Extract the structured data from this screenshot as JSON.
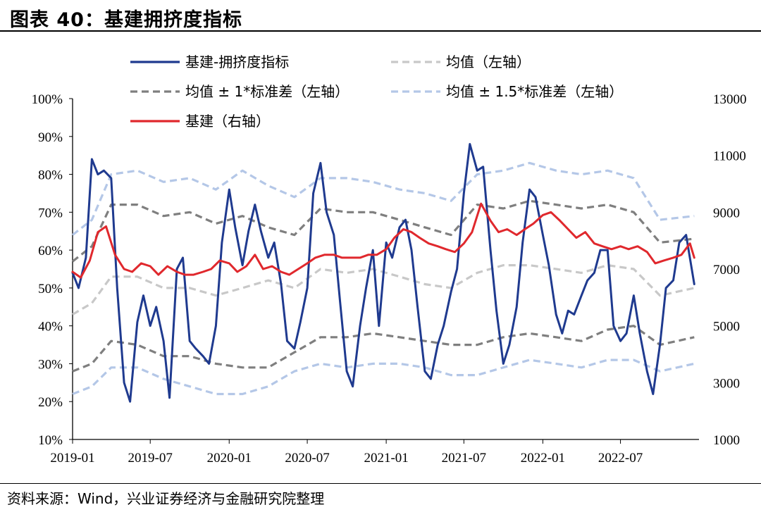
{
  "title": "图表 40：基建拥挤度指标",
  "source": "资料来源：Wind，兴业证券经济与金融研究院整理",
  "chart_data": {
    "type": "line",
    "x_tick_labels": [
      "2019-01",
      "2019-07",
      "2020-01",
      "2020-07",
      "2021-01",
      "2021-07",
      "2022-01",
      "2022-07"
    ],
    "x_range": [
      "2019-01-01",
      "2022-12-31"
    ],
    "y_left": {
      "ticks": [
        "10%",
        "20%",
        "30%",
        "40%",
        "50%",
        "60%",
        "70%",
        "80%",
        "90%",
        "100%"
      ],
      "range": [
        0.1,
        1.0
      ]
    },
    "y_right": {
      "ticks": [
        "1000",
        "3000",
        "5000",
        "7000",
        "9000",
        "11000",
        "13000"
      ],
      "range": [
        1000,
        13000
      ]
    },
    "legend": [
      {
        "label": "基建-拥挤度指标",
        "color": "#1f3a8f",
        "style": "solid"
      },
      {
        "label": "均值（左轴）",
        "color": "#c8c8c8",
        "style": "dashed"
      },
      {
        "label": "均值 ± 1*标准差（左轴）",
        "color": "#7f7f7f",
        "style": "dashed"
      },
      {
        "label": "均值 ± 1.5*标准差（左轴）",
        "color": "#b4c7e7",
        "style": "dashed"
      },
      {
        "label": "基建（右轴）",
        "color": "#e0282d",
        "style": "solid"
      }
    ],
    "series": [
      {
        "name": "基建-拥挤度指标",
        "axis": "left",
        "color": "#1f3a8f",
        "x": [
          "2019-01-01",
          "2019-01-15",
          "2019-02-01",
          "2019-02-15",
          "2019-03-01",
          "2019-03-15",
          "2019-04-01",
          "2019-04-15",
          "2019-05-01",
          "2019-05-15",
          "2019-06-01",
          "2019-06-15",
          "2019-07-01",
          "2019-07-15",
          "2019-08-01",
          "2019-08-15",
          "2019-09-01",
          "2019-09-15",
          "2019-10-01",
          "2019-10-15",
          "2019-11-01",
          "2019-11-15",
          "2019-12-01",
          "2019-12-15",
          "2020-01-01",
          "2020-01-15",
          "2020-02-01",
          "2020-02-15",
          "2020-03-01",
          "2020-03-15",
          "2020-04-01",
          "2020-04-15",
          "2020-05-01",
          "2020-05-15",
          "2020-06-01",
          "2020-06-15",
          "2020-07-01",
          "2020-07-15",
          "2020-08-01",
          "2020-08-15",
          "2020-09-01",
          "2020-09-15",
          "2020-10-01",
          "2020-10-15",
          "2020-11-01",
          "2020-11-15",
          "2020-12-01",
          "2020-12-15",
          "2021-01-01",
          "2021-01-15",
          "2021-02-01",
          "2021-02-15",
          "2021-03-01",
          "2021-03-15",
          "2021-04-01",
          "2021-04-15",
          "2021-05-01",
          "2021-05-15",
          "2021-06-01",
          "2021-06-15",
          "2021-07-01",
          "2021-07-15",
          "2021-08-01",
          "2021-08-15",
          "2021-09-01",
          "2021-09-15",
          "2021-10-01",
          "2021-10-15",
          "2021-11-01",
          "2021-11-15",
          "2021-12-01",
          "2021-12-15",
          "2022-01-01",
          "2022-01-15",
          "2022-02-01",
          "2022-02-15",
          "2022-03-01",
          "2022-03-15",
          "2022-04-01",
          "2022-04-15",
          "2022-05-01",
          "2022-05-15",
          "2022-06-01",
          "2022-06-15",
          "2022-07-01",
          "2022-07-15",
          "2022-08-01",
          "2022-08-15",
          "2022-09-01",
          "2022-09-15",
          "2022-10-01",
          "2022-10-15",
          "2022-11-01",
          "2022-11-15",
          "2022-12-01",
          "2022-12-20"
        ],
        "y": [
          0.54,
          0.5,
          0.58,
          0.84,
          0.8,
          0.81,
          0.79,
          0.5,
          0.25,
          0.2,
          0.41,
          0.48,
          0.4,
          0.45,
          0.36,
          0.21,
          0.55,
          0.58,
          0.36,
          0.34,
          0.32,
          0.3,
          0.4,
          0.62,
          0.76,
          0.66,
          0.56,
          0.65,
          0.72,
          0.65,
          0.58,
          0.62,
          0.51,
          0.36,
          0.34,
          0.41,
          0.5,
          0.75,
          0.83,
          0.7,
          0.64,
          0.47,
          0.28,
          0.24,
          0.4,
          0.5,
          0.6,
          0.4,
          0.62,
          0.58,
          0.66,
          0.68,
          0.6,
          0.45,
          0.28,
          0.26,
          0.35,
          0.4,
          0.49,
          0.55,
          0.75,
          0.88,
          0.81,
          0.82,
          0.6,
          0.44,
          0.3,
          0.35,
          0.45,
          0.62,
          0.76,
          0.74,
          0.64,
          0.56,
          0.43,
          0.38,
          0.44,
          0.43,
          0.48,
          0.52,
          0.54,
          0.6,
          0.6,
          0.4,
          0.36,
          0.38,
          0.48,
          0.38,
          0.28,
          0.22,
          0.35,
          0.5,
          0.52,
          0.62,
          0.64,
          0.51
        ]
      },
      {
        "name": "均值（左轴）",
        "axis": "left",
        "color": "#c8c8c8",
        "x": [
          "2019-01-01",
          "2019-02-15",
          "2019-04-01",
          "2019-06-01",
          "2019-08-01",
          "2019-10-01",
          "2019-12-01",
          "2020-02-01",
          "2020-04-01",
          "2020-06-01",
          "2020-08-01",
          "2020-10-01",
          "2020-12-01",
          "2021-02-01",
          "2021-04-01",
          "2021-06-01",
          "2021-08-01",
          "2021-10-01",
          "2021-12-01",
          "2022-02-01",
          "2022-04-01",
          "2022-06-01",
          "2022-08-01",
          "2022-10-01",
          "2022-12-20"
        ],
        "y": [
          0.43,
          0.46,
          0.53,
          0.53,
          0.5,
          0.5,
          0.48,
          0.5,
          0.52,
          0.5,
          0.55,
          0.54,
          0.55,
          0.53,
          0.51,
          0.5,
          0.54,
          0.56,
          0.56,
          0.55,
          0.54,
          0.56,
          0.55,
          0.48,
          0.5
        ]
      },
      {
        "name": "均值 ± 1*标准差（左轴）",
        "axis": "left",
        "color": "#7f7f7f",
        "x": [
          "2019-01-01",
          "2019-02-15",
          "2019-04-01",
          "2019-06-01",
          "2019-08-01",
          "2019-10-01",
          "2019-12-01",
          "2020-02-01",
          "2020-04-01",
          "2020-06-01",
          "2020-08-01",
          "2020-10-01",
          "2020-12-01",
          "2021-02-01",
          "2021-04-01",
          "2021-06-01",
          "2021-08-01",
          "2021-10-01",
          "2021-12-01",
          "2022-02-01",
          "2022-04-01",
          "2022-06-01",
          "2022-08-01",
          "2022-10-01",
          "2022-12-20"
        ],
        "y": [
          0.57,
          0.61,
          0.72,
          0.72,
          0.69,
          0.7,
          0.67,
          0.69,
          0.66,
          0.64,
          0.71,
          0.7,
          0.7,
          0.68,
          0.66,
          0.64,
          0.72,
          0.71,
          0.73,
          0.72,
          0.71,
          0.72,
          0.7,
          0.62,
          0.63
        ]
      },
      {
        "name": "均值 ± 1*标准差（左轴）",
        "axis": "left",
        "color": "#7f7f7f",
        "x": [
          "2019-01-01",
          "2019-02-15",
          "2019-04-01",
          "2019-06-01",
          "2019-08-01",
          "2019-10-01",
          "2019-12-01",
          "2020-02-01",
          "2020-04-01",
          "2020-06-01",
          "2020-08-01",
          "2020-10-01",
          "2020-12-01",
          "2021-02-01",
          "2021-04-01",
          "2021-06-01",
          "2021-08-01",
          "2021-10-01",
          "2021-12-01",
          "2022-02-01",
          "2022-04-01",
          "2022-06-01",
          "2022-08-01",
          "2022-10-01",
          "2022-12-20"
        ],
        "y": [
          0.28,
          0.3,
          0.36,
          0.35,
          0.32,
          0.32,
          0.3,
          0.29,
          0.29,
          0.33,
          0.37,
          0.37,
          0.38,
          0.37,
          0.36,
          0.35,
          0.35,
          0.37,
          0.38,
          0.37,
          0.36,
          0.39,
          0.4,
          0.35,
          0.37
        ]
      },
      {
        "name": "均值 ± 1.5*标准差（左轴）",
        "axis": "left",
        "color": "#b4c7e7",
        "x": [
          "2019-01-01",
          "2019-02-15",
          "2019-04-01",
          "2019-06-01",
          "2019-08-01",
          "2019-10-01",
          "2019-12-01",
          "2020-02-01",
          "2020-04-01",
          "2020-06-01",
          "2020-08-01",
          "2020-10-01",
          "2020-12-01",
          "2021-02-01",
          "2021-04-01",
          "2021-06-01",
          "2021-08-01",
          "2021-10-01",
          "2021-12-01",
          "2022-02-01",
          "2022-04-01",
          "2022-06-01",
          "2022-08-01",
          "2022-10-01",
          "2022-12-20"
        ],
        "y": [
          0.64,
          0.68,
          0.8,
          0.81,
          0.78,
          0.79,
          0.76,
          0.81,
          0.77,
          0.74,
          0.79,
          0.79,
          0.78,
          0.76,
          0.75,
          0.73,
          0.8,
          0.81,
          0.83,
          0.81,
          0.8,
          0.81,
          0.79,
          0.68,
          0.69
        ]
      },
      {
        "name": "均值 ± 1.5*标准差（左轴）",
        "axis": "left",
        "color": "#b4c7e7",
        "x": [
          "2019-01-01",
          "2019-02-15",
          "2019-04-01",
          "2019-06-01",
          "2019-08-01",
          "2019-10-01",
          "2019-12-01",
          "2020-02-01",
          "2020-04-01",
          "2020-06-01",
          "2020-08-01",
          "2020-10-01",
          "2020-12-01",
          "2021-02-01",
          "2021-04-01",
          "2021-06-01",
          "2021-08-01",
          "2021-10-01",
          "2021-12-01",
          "2022-02-01",
          "2022-04-01",
          "2022-06-01",
          "2022-08-01",
          "2022-10-01",
          "2022-12-20"
        ],
        "y": [
          0.22,
          0.24,
          0.29,
          0.29,
          0.26,
          0.24,
          0.22,
          0.22,
          0.24,
          0.28,
          0.3,
          0.29,
          0.3,
          0.3,
          0.29,
          0.27,
          0.27,
          0.29,
          0.31,
          0.3,
          0.29,
          0.31,
          0.31,
          0.28,
          0.3
        ]
      },
      {
        "name": "基建（右轴）",
        "axis": "right",
        "color": "#e0282d",
        "x": [
          "2019-01-01",
          "2019-01-20",
          "2019-02-10",
          "2019-03-01",
          "2019-03-20",
          "2019-04-10",
          "2019-05-01",
          "2019-05-20",
          "2019-06-10",
          "2019-07-01",
          "2019-07-20",
          "2019-08-10",
          "2019-09-01",
          "2019-09-20",
          "2019-10-10",
          "2019-11-01",
          "2019-11-20",
          "2019-12-10",
          "2020-01-01",
          "2020-01-20",
          "2020-02-10",
          "2020-03-01",
          "2020-03-20",
          "2020-04-10",
          "2020-05-01",
          "2020-05-20",
          "2020-06-10",
          "2020-07-01",
          "2020-07-20",
          "2020-08-10",
          "2020-09-01",
          "2020-09-20",
          "2020-10-10",
          "2020-11-01",
          "2020-11-20",
          "2020-12-10",
          "2021-01-01",
          "2021-01-20",
          "2021-02-10",
          "2021-03-01",
          "2021-03-20",
          "2021-04-10",
          "2021-05-01",
          "2021-05-20",
          "2021-06-10",
          "2021-07-01",
          "2021-07-20",
          "2021-08-10",
          "2021-09-01",
          "2021-09-20",
          "2021-10-10",
          "2021-11-01",
          "2021-11-20",
          "2021-12-10",
          "2022-01-01",
          "2022-01-20",
          "2022-02-10",
          "2022-03-01",
          "2022-03-20",
          "2022-04-10",
          "2022-05-01",
          "2022-05-20",
          "2022-06-10",
          "2022-07-01",
          "2022-07-20",
          "2022-08-10",
          "2022-09-01",
          "2022-09-20",
          "2022-10-10",
          "2022-11-01",
          "2022-11-20",
          "2022-12-10",
          "2022-12-20"
        ],
        "y": [
          6900,
          6700,
          7300,
          8300,
          8500,
          7500,
          7000,
          6900,
          7200,
          7100,
          6800,
          7100,
          6900,
          6800,
          6800,
          6900,
          7000,
          7300,
          7200,
          6900,
          7100,
          7500,
          7000,
          7100,
          6900,
          6800,
          7000,
          7200,
          7400,
          7500,
          7500,
          7400,
          7400,
          7400,
          7500,
          7500,
          7700,
          8100,
          8400,
          8300,
          8100,
          7900,
          7800,
          7700,
          7600,
          7900,
          8300,
          9300,
          8700,
          8300,
          8400,
          8200,
          8400,
          8600,
          8900,
          9000,
          8700,
          8400,
          8100,
          8300,
          7900,
          7800,
          7700,
          7800,
          7700,
          7800,
          7600,
          7200,
          7300,
          7400,
          7500,
          7900,
          7400
        ]
      }
    ]
  }
}
